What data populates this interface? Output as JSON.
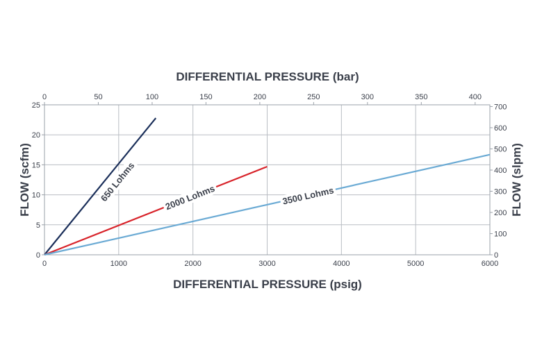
{
  "chart_data": {
    "type": "line",
    "title": "",
    "xlabel": "DIFFERENTIAL PRESSURE (psig)",
    "x2label": "DIFFERENTIAL PRESSURE (bar)",
    "ylabel": "FLOW (scfm)",
    "y2label": "FLOW (slpm)",
    "xlim": [
      0,
      6000
    ],
    "ylim": [
      0,
      25
    ],
    "x2lim": [
      0,
      413.7
    ],
    "y2lim": [
      0,
      708
    ],
    "xticks": [
      0,
      1000,
      2000,
      3000,
      4000,
      5000,
      6000
    ],
    "yticks": [
      0,
      5,
      10,
      15,
      20,
      25
    ],
    "x2ticks": [
      0,
      50,
      100,
      150,
      200,
      250,
      300,
      350,
      400
    ],
    "y2ticks": [
      0,
      100,
      200,
      300,
      400,
      500,
      600,
      700
    ],
    "grid": true,
    "series": [
      {
        "name": "650 Lohms",
        "color": "#1b2f5a",
        "x": [
          0,
          1500
        ],
        "y": [
          0,
          22.8
        ],
        "label_at": {
          "x": 980,
          "y": 12.2
        }
      },
      {
        "name": "2000 Lohms",
        "color": "#d8232a",
        "x": [
          0,
          3000
        ],
        "y": [
          0,
          14.7
        ],
        "label_at": {
          "x": 1960,
          "y": 9.6
        }
      },
      {
        "name": "3500 Lohms",
        "color": "#6aaad4",
        "x": [
          0,
          6000
        ],
        "y": [
          0,
          16.7
        ],
        "label_at": {
          "x": 3550,
          "y": 9.9
        }
      }
    ]
  }
}
